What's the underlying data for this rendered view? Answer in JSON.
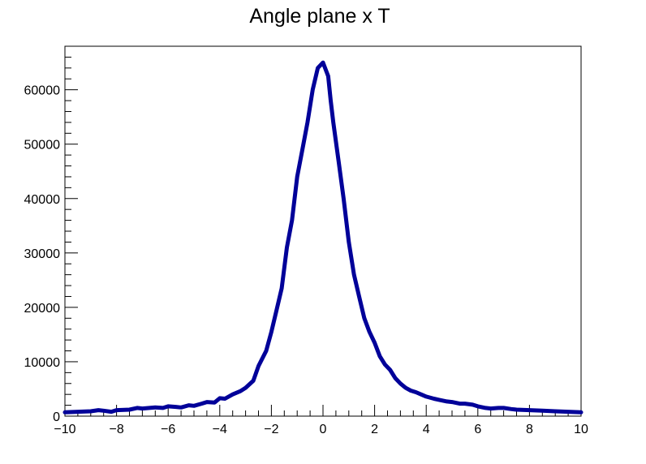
{
  "chart_data": {
    "type": "line",
    "title": "Angle plane x T",
    "xlabel": "",
    "ylabel": "",
    "xlim": [
      -10,
      10
    ],
    "ylim": [
      0,
      68000
    ],
    "grid": false,
    "legend": "none",
    "x_ticks": [
      -10,
      -8,
      -6,
      -4,
      -2,
      0,
      2,
      4,
      6,
      8,
      10
    ],
    "x_tick_labels": [
      "−10",
      "−8",
      "−6",
      "−4",
      "−2",
      "0",
      "2",
      "4",
      "6",
      "8",
      "10"
    ],
    "y_ticks": [
      0,
      10000,
      20000,
      30000,
      40000,
      50000,
      60000
    ],
    "y_tick_labels": [
      "0",
      "10000",
      "20000",
      "30000",
      "40000",
      "50000",
      "60000"
    ],
    "line_color": "#000099",
    "series": [
      {
        "x": [
          -10,
          -9.5,
          -9,
          -8.7,
          -8.5,
          -8.2,
          -8,
          -7.5,
          -7.2,
          -7,
          -6.5,
          -6.2,
          -6,
          -5.7,
          -5.5,
          -5.2,
          -5,
          -4.7,
          -4.5,
          -4.2,
          -4,
          -3.8,
          -3.5,
          -3.2,
          -3,
          -2.7,
          -2.5,
          -2.2,
          -2,
          -1.8,
          -1.6,
          -1.4,
          -1.2,
          -1,
          -0.8,
          -0.6,
          -0.4,
          -0.2,
          0,
          0.2,
          0.3,
          0.4,
          0.6,
          0.8,
          1,
          1.2,
          1.4,
          1.6,
          1.8,
          2,
          2.2,
          2.4,
          2.6,
          2.8,
          3,
          3.2,
          3.4,
          3.6,
          3.8,
          4,
          4.3,
          4.5,
          4.8,
          5,
          5.3,
          5.5,
          5.8,
          6,
          6.3,
          6.5,
          6.8,
          7,
          7.3,
          7.5,
          8,
          8.5,
          9,
          9.5,
          10
        ],
        "y": [
          700,
          800,
          900,
          1100,
          1000,
          800,
          1100,
          1200,
          1500,
          1400,
          1600,
          1500,
          1800,
          1700,
          1600,
          2000,
          1900,
          2300,
          2600,
          2500,
          3300,
          3200,
          4000,
          4600,
          5200,
          6500,
          9200,
          12000,
          15500,
          19500,
          23500,
          31000,
          36000,
          44000,
          49000,
          54000,
          60000,
          64000,
          65000,
          62500,
          58000,
          54000,
          47000,
          40000,
          32000,
          26000,
          22000,
          18000,
          15500,
          13500,
          11000,
          9500,
          8500,
          7000,
          6000,
          5200,
          4700,
          4400,
          4000,
          3600,
          3200,
          3000,
          2700,
          2600,
          2300,
          2300,
          2100,
          1800,
          1500,
          1400,
          1500,
          1500,
          1300,
          1200,
          1100,
          1000,
          900,
          800,
          700
        ]
      }
    ]
  }
}
